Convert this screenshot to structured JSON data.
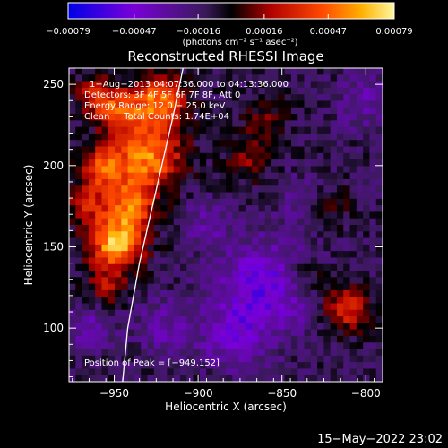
{
  "chart_data": {
    "type": "heatmap",
    "title": "Reconstructed RHESSI Image",
    "xlabel": "Heliocentric X (arcsec)",
    "ylabel": "Heliocentric Y (arcsec)",
    "xlim": [
      -977,
      -790
    ],
    "ylim": [
      67,
      260
    ],
    "x_ticks": [
      -950,
      -900,
      -850,
      -800
    ],
    "y_ticks": [
      100,
      150,
      200,
      250
    ],
    "x_tick_labels": [
      "−950",
      "−900",
      "−850",
      "−800"
    ],
    "y_tick_labels": [
      "100",
      "150",
      "200",
      "250"
    ],
    "colorbar": {
      "min": -0.00079,
      "max": 0.00079,
      "ticks": [
        -0.00079,
        -0.00047,
        -0.00016,
        0.00016,
        0.00047,
        0.00079
      ],
      "tick_labels": [
        "−0.00079",
        "−0.00047",
        "−0.00016",
        "0.00016",
        "0.00047",
        "0.00079"
      ],
      "units_label": "(photons cm⁻² s⁻¹ asec⁻²)",
      "colors": [
        "#0000e6",
        "#7a00d8",
        "#3a1a5a",
        "#000000",
        "#b00000",
        "#ff4a00",
        "#ffb000",
        "#fff8a0"
      ]
    },
    "annotations": {
      "time_range": "1−Aug−2013 04:07:36.000 to 04:13:36.000",
      "detectors": "Detectors: 3F 4F 5F 6F 7F 8F, Att 0",
      "energy": "Energy Range: 12.0 − 25.0 keV",
      "clean": "Clean     Total Counts: 1.74E+04",
      "peak": "Position of Peak = [−949,152]"
    },
    "sources": [
      {
        "x": -949,
        "y": 152,
        "r": 11,
        "v": 0.00079
      },
      {
        "x": -940,
        "y": 175,
        "r": 10,
        "v": 0.00058
      },
      {
        "x": -930,
        "y": 205,
        "r": 14,
        "v": 0.00066
      },
      {
        "x": -958,
        "y": 198,
        "r": 10,
        "v": 0.0005
      },
      {
        "x": -923,
        "y": 240,
        "r": 11,
        "v": 0.00062
      },
      {
        "x": -945,
        "y": 232,
        "r": 9,
        "v": 0.00046
      },
      {
        "x": -960,
        "y": 242,
        "r": 9,
        "v": 0.0004
      },
      {
        "x": -966,
        "y": 175,
        "r": 8,
        "v": 0.00034
      },
      {
        "x": -955,
        "y": 125,
        "r": 8,
        "v": 0.00028
      },
      {
        "x": -870,
        "y": 205,
        "r": 10,
        "v": 0.00026
      },
      {
        "x": -860,
        "y": 230,
        "r": 9,
        "v": 0.0002
      },
      {
        "x": -812,
        "y": 112,
        "r": 10,
        "v": 0.00042
      },
      {
        "x": -835,
        "y": 132,
        "r": 9,
        "v": 0.00022
      },
      {
        "x": -820,
        "y": 175,
        "r": 8,
        "v": 0.00018
      },
      {
        "x": -860,
        "y": 125,
        "r": 20,
        "v": -0.0004
      },
      {
        "x": -880,
        "y": 95,
        "r": 14,
        "v": -0.00026
      },
      {
        "x": -920,
        "y": 100,
        "r": 12,
        "v": -0.0002
      },
      {
        "x": -965,
        "y": 100,
        "r": 10,
        "v": -0.00022
      },
      {
        "x": -895,
        "y": 165,
        "r": 10,
        "v": -0.00018
      },
      {
        "x": -800,
        "y": 240,
        "r": 12,
        "v": -0.0002
      },
      {
        "x": -840,
        "y": 180,
        "r": 10,
        "v": -0.00012
      }
    ],
    "limb": [
      [
        -945,
        67
      ],
      [
        -942,
        100
      ],
      [
        -935,
        140
      ],
      [
        -925,
        185
      ],
      [
        -915,
        230
      ],
      [
        -909,
        260
      ]
    ]
  },
  "footer": {
    "datetime": "15−May−2022 23:02"
  }
}
